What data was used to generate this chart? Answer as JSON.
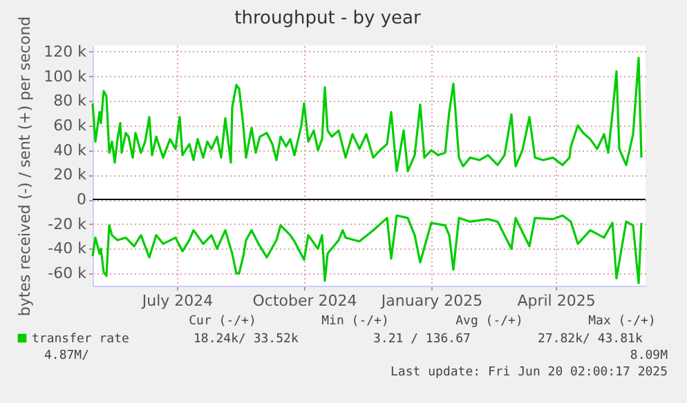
{
  "chart_data": {
    "type": "line",
    "title": "throughput - by year",
    "ylabel": "bytes received (-) / sent (+) per second",
    "xlim": [
      "2024-05-01",
      "2025-06-05"
    ],
    "xticks": [
      {
        "value": "2024-07-01",
        "label": "July 2024"
      },
      {
        "value": "2024-10-01",
        "label": "October 2024"
      },
      {
        "value": "2025-01-01",
        "label": "January 2025"
      },
      {
        "value": "2025-04-01",
        "label": "April 2025"
      }
    ],
    "ylim": [
      -70,
      125
    ],
    "yticks": [
      {
        "value": -60,
        "label": "-60 k"
      },
      {
        "value": -40,
        "label": "-40 k"
      },
      {
        "value": -20,
        "label": "-20 k"
      },
      0,
      {
        "value": 20,
        "label": "20 k"
      },
      {
        "value": 40,
        "label": "40 k"
      },
      {
        "value": 60,
        "label": "60 k"
      },
      {
        "value": 80,
        "label": "80 k"
      },
      {
        "value": 100,
        "label": "100 k"
      },
      {
        "value": 120,
        "label": "120 k"
      }
    ],
    "grid": true,
    "legend": "bottom",
    "line_style": "solid",
    "marker": "none",
    "ref_lines": [
      {
        "axis": "y",
        "value": 0,
        "color": "#000000"
      }
    ],
    "series": [
      {
        "name": "transfer rate",
        "color": "#00cc00",
        "x": [
          "2024-05-01",
          "2024-05-03",
          "2024-05-06",
          "2024-05-07",
          "2024-05-09",
          "2024-05-11",
          "2024-05-13",
          "2024-05-15",
          "2024-05-17",
          "2024-05-19",
          "2024-05-21",
          "2024-05-22",
          "2024-05-25",
          "2024-05-27",
          "2024-05-30",
          "2024-06-01",
          "2024-06-05",
          "2024-06-08",
          "2024-06-11",
          "2024-06-13",
          "2024-06-16",
          "2024-06-21",
          "2024-06-26",
          "2024-06-30",
          "2024-07-03",
          "2024-07-05",
          "2024-07-10",
          "2024-07-13",
          "2024-07-16",
          "2024-07-20",
          "2024-07-23",
          "2024-07-26",
          "2024-07-30",
          "2024-08-02",
          "2024-08-05",
          "2024-08-09",
          "2024-08-10",
          "2024-08-13",
          "2024-08-15",
          "2024-08-18",
          "2024-08-20",
          "2024-08-24",
          "2024-08-27",
          "2024-08-30",
          "2024-09-04",
          "2024-09-08",
          "2024-09-11",
          "2024-09-14",
          "2024-09-18",
          "2024-09-21",
          "2024-09-24",
          "2024-09-29",
          "2024-10-01",
          "2024-10-04",
          "2024-10-08",
          "2024-10-11",
          "2024-10-14",
          "2024-10-16",
          "2024-10-18",
          "2024-10-21",
          "2024-10-26",
          "2024-10-31",
          "2024-11-05",
          "2024-11-10",
          "2024-11-15",
          "2024-11-20",
          "2024-11-25",
          "2024-11-30",
          "2024-12-03",
          "2024-12-07",
          "2024-12-12",
          "2024-12-15",
          "2024-12-20",
          "2024-12-24",
          "2024-12-27",
          "2025-01-01",
          "2025-01-06",
          "2025-01-11",
          "2025-01-14",
          "2025-01-17",
          "2025-01-21",
          "2025-01-24",
          "2025-01-29",
          "2025-02-05",
          "2025-02-11",
          "2025-02-18",
          "2025-02-23",
          "2025-02-28",
          "2025-03-03",
          "2025-03-08",
          "2025-03-13",
          "2025-03-17",
          "2025-03-23",
          "2025-03-30",
          "2025-04-06",
          "2025-04-11",
          "2025-04-12",
          "2025-04-17",
          "2025-04-21",
          "2025-04-26",
          "2025-05-01",
          "2025-05-06",
          "2025-05-09",
          "2025-05-12",
          "2025-05-15",
          "2025-05-17",
          "2025-05-22",
          "2025-05-27",
          "2025-05-31",
          "2025-06-02"
        ],
        "values": [
          78,
          47,
          71,
          62,
          88,
          84,
          38,
          47,
          30,
          49,
          62,
          38,
          54,
          51,
          34,
          54,
          38,
          47,
          67,
          36,
          51,
          34,
          49,
          41,
          67,
          36,
          45,
          32,
          49,
          34,
          47,
          41,
          51,
          34,
          66,
          30,
          75,
          93,
          90,
          60,
          34,
          58,
          38,
          51,
          54,
          45,
          32,
          51,
          43,
          49,
          36,
          60,
          78,
          47,
          56,
          40,
          49,
          91,
          56,
          51,
          56,
          34,
          53,
          41,
          53,
          34,
          40,
          45,
          71,
          23,
          56,
          23,
          36,
          77,
          34,
          40,
          36,
          38,
          71,
          94,
          34,
          27,
          34,
          32,
          36,
          28,
          36,
          69,
          27,
          40,
          67,
          34,
          32,
          34,
          28,
          34,
          43,
          60,
          54,
          49,
          41,
          53,
          38,
          69,
          104,
          41,
          28,
          53,
          115,
          34
        ]
      },
      {
        "color": "#00cc00",
        "x": [
          "2024-05-01",
          "2024-05-03",
          "2024-05-06",
          "2024-05-07",
          "2024-05-09",
          "2024-05-11",
          "2024-05-13",
          "2024-05-15",
          "2024-05-19",
          "2024-05-25",
          "2024-05-31",
          "2024-06-05",
          "2024-06-11",
          "2024-06-16",
          "2024-06-21",
          "2024-06-30",
          "2024-07-05",
          "2024-07-10",
          "2024-07-13",
          "2024-07-20",
          "2024-07-26",
          "2024-07-30",
          "2024-08-05",
          "2024-08-10",
          "2024-08-13",
          "2024-08-15",
          "2024-08-18",
          "2024-08-20",
          "2024-08-24",
          "2024-08-29",
          "2024-09-04",
          "2024-09-11",
          "2024-09-14",
          "2024-09-21",
          "2024-09-24",
          "2024-10-01",
          "2024-10-04",
          "2024-10-11",
          "2024-10-14",
          "2024-10-16",
          "2024-10-18",
          "2024-10-26",
          "2024-10-29",
          "2024-10-31",
          "2024-11-10",
          "2024-11-20",
          "2024-11-30",
          "2024-12-03",
          "2024-12-07",
          "2024-12-15",
          "2024-12-20",
          "2024-12-24",
          "2025-01-01",
          "2025-01-11",
          "2025-01-14",
          "2025-01-17",
          "2025-01-21",
          "2025-01-29",
          "2025-02-11",
          "2025-02-18",
          "2025-02-28",
          "2025-03-03",
          "2025-03-13",
          "2025-03-17",
          "2025-03-30",
          "2025-04-06",
          "2025-04-12",
          "2025-04-17",
          "2025-04-26",
          "2025-05-06",
          "2025-05-12",
          "2025-05-15",
          "2025-05-22",
          "2025-05-27",
          "2025-05-31",
          "2025-06-02"
        ],
        "values": [
          -46,
          -31,
          -44,
          -40,
          -59,
          -62,
          -21,
          -29,
          -33,
          -31,
          -38,
          -29,
          -47,
          -29,
          -36,
          -31,
          -42,
          -33,
          -25,
          -36,
          -29,
          -40,
          -25,
          -44,
          -60,
          -60,
          -46,
          -33,
          -25,
          -36,
          -47,
          -33,
          -21,
          -29,
          -34,
          -49,
          -29,
          -40,
          -29,
          -66,
          -44,
          -33,
          -25,
          -31,
          -34,
          -25,
          -15,
          -48,
          -13,
          -15,
          -29,
          -51,
          -19,
          -21,
          -29,
          -57,
          -15,
          -18,
          -16,
          -18,
          -40,
          -15,
          -38,
          -15,
          -16,
          -13,
          -18,
          -36,
          -25,
          -31,
          -19,
          -64,
          -18,
          -21,
          -68,
          -19
        ]
      }
    ],
    "annotations": [
      "Cur (-/+)",
      "Min (-/+)",
      "Avg (-/+)",
      "Max (-/+)",
      "18.24k/   33.52k",
      "3.21 /  136.67",
      "27.82k/   43.81k",
      "4.87M/",
      "8.09M",
      "Last update: Fri Jun 20 02:00:17 2025"
    ]
  }
}
